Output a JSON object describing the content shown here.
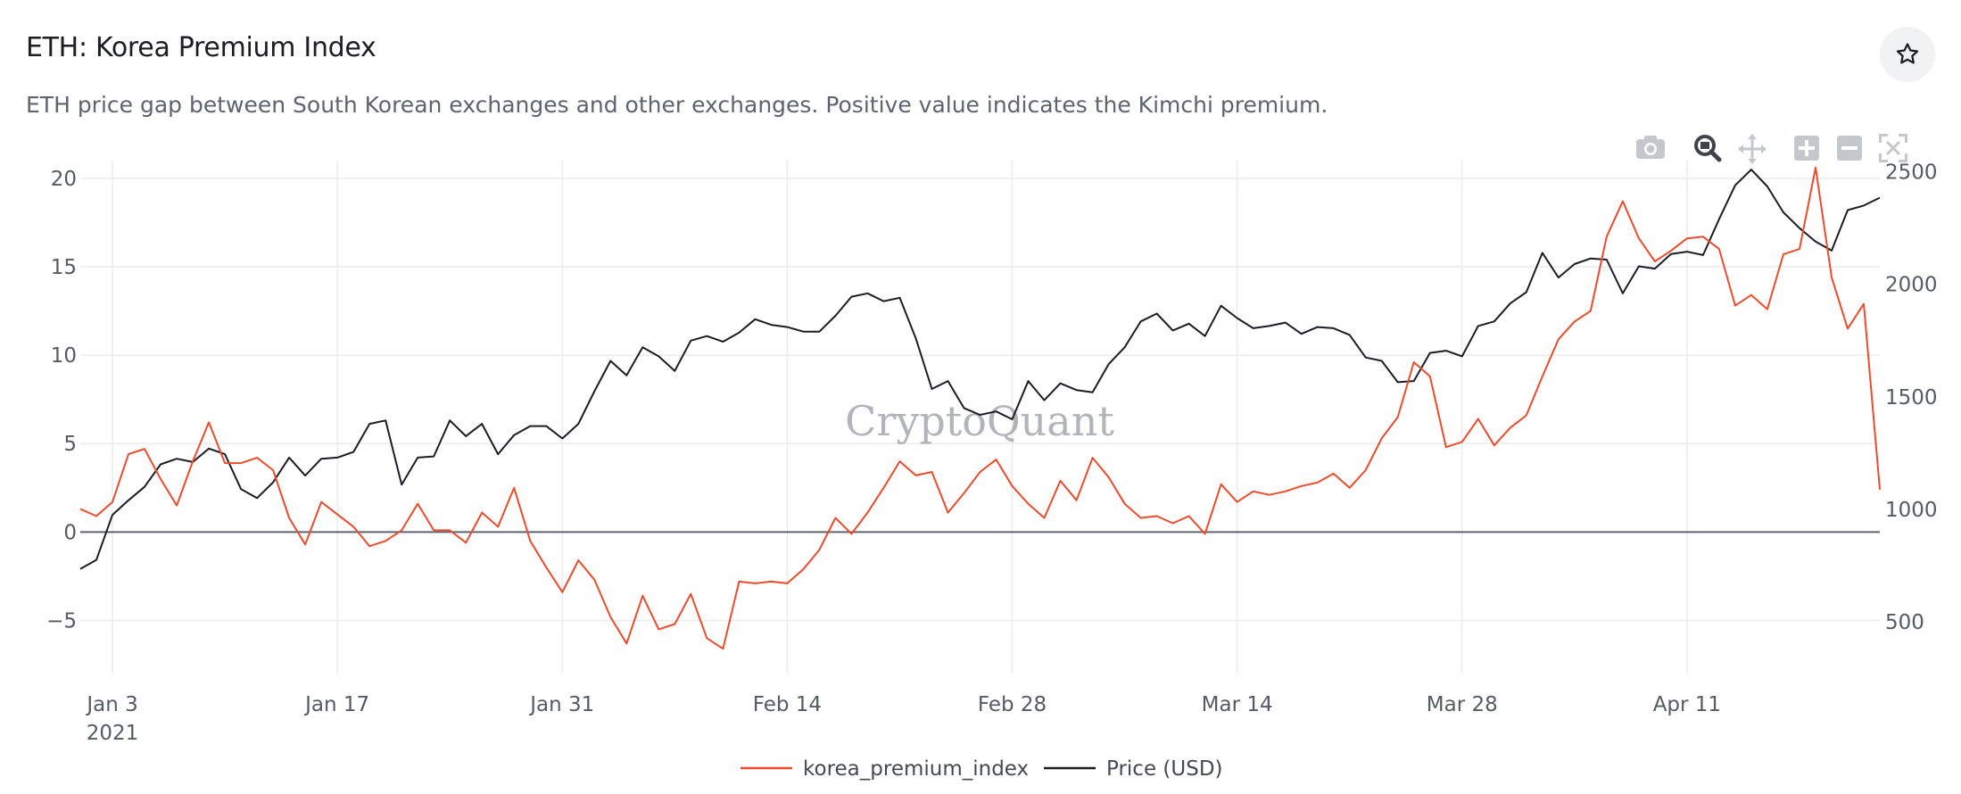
{
  "header": {
    "title": "ETH: Korea Premium Index",
    "subtitle": "ETH price gap between South Korean exchanges and other exchanges. Positive value indicates the Kimchi premium."
  },
  "toolbar": [
    "camera-icon",
    "zoom-icon",
    "pan-icon",
    "zoom-in-icon",
    "zoom-out-icon",
    "autoscale-icon"
  ],
  "watermark": "CryptoQuant",
  "colors": {
    "premium": "#ec4b2d",
    "price": "#1b1d24",
    "zero_line": "#5f6570",
    "grid": "#ececee"
  },
  "chart_data": {
    "type": "line",
    "x_start": "2021-01-01",
    "x_step_days": 1,
    "x_ticks": [
      {
        "date": "2021-01-03",
        "label": "Jan 3",
        "sublabel": "2021"
      },
      {
        "date": "2021-01-17",
        "label": "Jan 17"
      },
      {
        "date": "2021-01-31",
        "label": "Jan 31"
      },
      {
        "date": "2021-02-14",
        "label": "Feb 14"
      },
      {
        "date": "2021-02-28",
        "label": "Feb 28"
      },
      {
        "date": "2021-03-14",
        "label": "Mar 14"
      },
      {
        "date": "2021-03-28",
        "label": "Mar 28"
      },
      {
        "date": "2021-04-11",
        "label": "Apr 11"
      }
    ],
    "x_range": [
      "2021-01-01",
      "2021-04-23"
    ],
    "y_left": {
      "range": [
        -8,
        21
      ],
      "ticks": [
        -5,
        0,
        5,
        10,
        15,
        20
      ],
      "tick_labels": [
        "−5",
        "0",
        "5",
        "10",
        "15",
        "20"
      ]
    },
    "y_right": {
      "range": [
        270,
        2550
      ],
      "ticks": [
        500,
        1000,
        1500,
        2000,
        2500
      ]
    },
    "grid": true,
    "legend_position": "bottom-center",
    "series": [
      {
        "name": "korea_premium_index",
        "axis": "left",
        "values": [
          1.3,
          0.9,
          1.7,
          4.4,
          4.7,
          3.0,
          1.5,
          4.0,
          6.2,
          3.9,
          3.9,
          4.2,
          3.5,
          0.8,
          -0.7,
          1.7,
          1.0,
          0.3,
          -0.8,
          -0.5,
          0.1,
          1.6,
          0.1,
          0.1,
          -0.6,
          1.1,
          0.3,
          2.5,
          -0.5,
          -2.0,
          -3.4,
          -1.6,
          -2.7,
          -4.8,
          -6.3,
          -3.6,
          -5.5,
          -5.2,
          -3.5,
          -6.0,
          -6.6,
          -2.8,
          -2.9,
          -2.8,
          -2.9,
          -2.1,
          -1.0,
          0.8,
          -0.1,
          1.1,
          2.5,
          4.0,
          3.2,
          3.4,
          1.1,
          2.2,
          3.4,
          4.1,
          2.6,
          1.6,
          0.8,
          2.9,
          1.8,
          4.2,
          3.1,
          1.6,
          0.8,
          0.9,
          0.5,
          0.9,
          -0.1,
          2.7,
          1.7,
          2.3,
          2.1,
          2.3,
          2.6,
          2.8,
          3.3,
          2.5,
          3.5,
          5.3,
          6.5,
          9.6,
          8.8,
          4.8,
          5.1,
          6.4,
          4.9,
          5.9,
          6.6,
          8.8,
          10.9,
          11.9,
          12.5,
          16.7,
          18.7,
          16.6,
          15.3,
          15.9,
          16.6,
          16.7,
          16.0,
          12.8,
          13.4,
          12.6,
          15.7,
          16.0,
          20.6,
          14.4,
          11.5,
          12.9,
          2.4
        ]
      },
      {
        "name": "Price (USD)",
        "axis": "right",
        "values": [
          735,
          775,
          975,
          1040,
          1100,
          1200,
          1225,
          1210,
          1270,
          1245,
          1090,
          1050,
          1120,
          1230,
          1150,
          1225,
          1230,
          1255,
          1380,
          1395,
          1110,
          1230,
          1235,
          1395,
          1325,
          1380,
          1245,
          1330,
          1370,
          1370,
          1315,
          1380,
          1525,
          1660,
          1595,
          1720,
          1680,
          1615,
          1750,
          1770,
          1745,
          1785,
          1845,
          1820,
          1810,
          1790,
          1790,
          1860,
          1945,
          1960,
          1925,
          1940,
          1760,
          1535,
          1570,
          1450,
          1420,
          1435,
          1400,
          1570,
          1485,
          1560,
          1530,
          1520,
          1645,
          1720,
          1835,
          1870,
          1795,
          1825,
          1770,
          1905,
          1850,
          1805,
          1815,
          1830,
          1780,
          1810,
          1805,
          1775,
          1675,
          1660,
          1565,
          1570,
          1695,
          1705,
          1680,
          1815,
          1835,
          1915,
          1965,
          2140,
          2030,
          2090,
          2115,
          2110,
          1960,
          2080,
          2070,
          2135,
          2145,
          2130,
          2290,
          2440,
          2510,
          2435,
          2320,
          2250,
          2190,
          2150,
          2330,
          2350,
          2385
        ]
      }
    ]
  }
}
